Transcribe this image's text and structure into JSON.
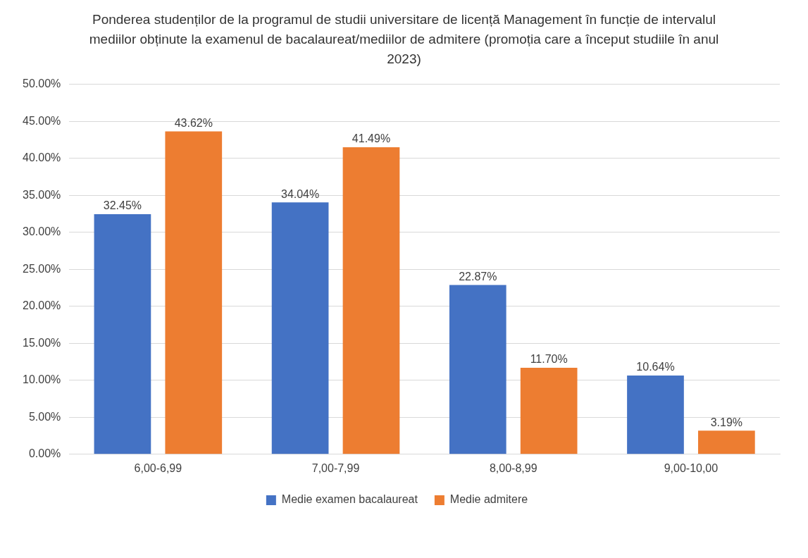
{
  "chart_data": {
    "type": "bar",
    "title": "Ponderea studenților de la programul de studii universitare de licență Management în funcție de intervalul mediilor obținute la examenul de bacalaureat/mediilor de admitere (promoția care a început studiile în anul 2023)",
    "categories": [
      "6,00-6,99",
      "7,00-7,99",
      "8,00-8,99",
      "9,00-10,00"
    ],
    "series": [
      {
        "name": "Medie examen bacalaureat",
        "color": "#4472c4",
        "values": [
          32.45,
          34.04,
          22.87,
          10.64
        ],
        "value_labels": [
          "32.45%",
          "34.04%",
          "22.87%",
          "10.64%"
        ]
      },
      {
        "name": "Medie admitere",
        "color": "#ed7d31",
        "values": [
          43.62,
          41.49,
          11.7,
          3.19
        ],
        "value_labels": [
          "43.62%",
          "41.49%",
          "11.70%",
          "3.19%"
        ]
      }
    ],
    "ylim": [
      0,
      50
    ],
    "yticks": [
      {
        "value": 0,
        "label": "0.00%"
      },
      {
        "value": 5,
        "label": "5.00%"
      },
      {
        "value": 10,
        "label": "10.00%"
      },
      {
        "value": 15,
        "label": "15.00%"
      },
      {
        "value": 20,
        "label": "20.00%"
      },
      {
        "value": 25,
        "label": "25.00%"
      },
      {
        "value": 30,
        "label": "30.00%"
      },
      {
        "value": 35,
        "label": "35.00%"
      },
      {
        "value": 40,
        "label": "40.00%"
      },
      {
        "value": 45,
        "label": "45.00%"
      },
      {
        "value": 50,
        "label": "50.00%"
      }
    ],
    "grid": "y",
    "legend": "bottom"
  }
}
